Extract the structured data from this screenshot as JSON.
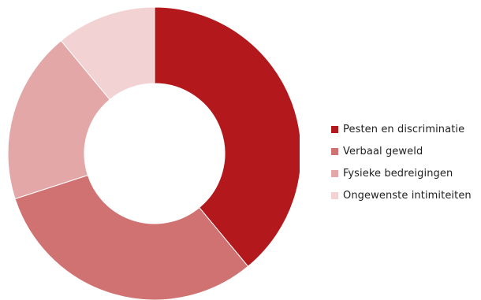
{
  "chart_data": {
    "type": "pie",
    "variant": "donut",
    "categories": [
      "Pesten en discriminatie",
      "Verbaal geweld",
      "Fysieke bedreigingen",
      "Ongewenste intimiteiten"
    ],
    "values": [
      39,
      31,
      19,
      11
    ],
    "colors": [
      "#b3181d",
      "#d07272",
      "#e3a7a7",
      "#f2d2d2"
    ],
    "legend_position": "right"
  }
}
